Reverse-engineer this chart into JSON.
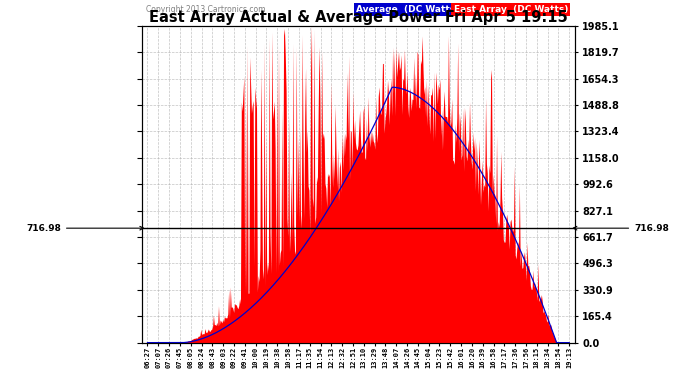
{
  "title": "East Array Actual & Average Power Fri Apr 5 19:15",
  "copyright": "Copyright 2013 Cartronics.com",
  "legend_avg": "Average  (DC Watts)",
  "legend_east": "East Array  (DC Watts)",
  "ymax": 1985.1,
  "ymin": 0.0,
  "yticks": [
    0.0,
    165.4,
    330.9,
    496.3,
    661.7,
    827.1,
    992.6,
    1158.0,
    1323.4,
    1488.8,
    1654.3,
    1819.7,
    1985.1
  ],
  "hline_value": 716.98,
  "hline_label": "716.98",
  "bg_color": "#ffffff",
  "plot_bg_color": "#ffffff",
  "grid_color": "#aaaaaa",
  "east_color": "#ff0000",
  "avg_color": "#0000cc",
  "x_labels": [
    "06:27",
    "07:07",
    "07:26",
    "07:45",
    "08:05",
    "08:24",
    "08:43",
    "09:03",
    "09:22",
    "09:41",
    "10:00",
    "10:19",
    "10:38",
    "10:58",
    "11:17",
    "11:35",
    "11:54",
    "12:13",
    "12:32",
    "12:51",
    "13:10",
    "13:29",
    "13:48",
    "14:07",
    "14:26",
    "14:45",
    "15:04",
    "15:23",
    "15:42",
    "16:01",
    "16:20",
    "16:39",
    "16:58",
    "17:17",
    "17:36",
    "17:56",
    "18:15",
    "18:34",
    "18:54",
    "19:13"
  ],
  "n_labels": 40,
  "peak_index": 22,
  "peak_value": 1950,
  "avg_peak_value": 1600
}
